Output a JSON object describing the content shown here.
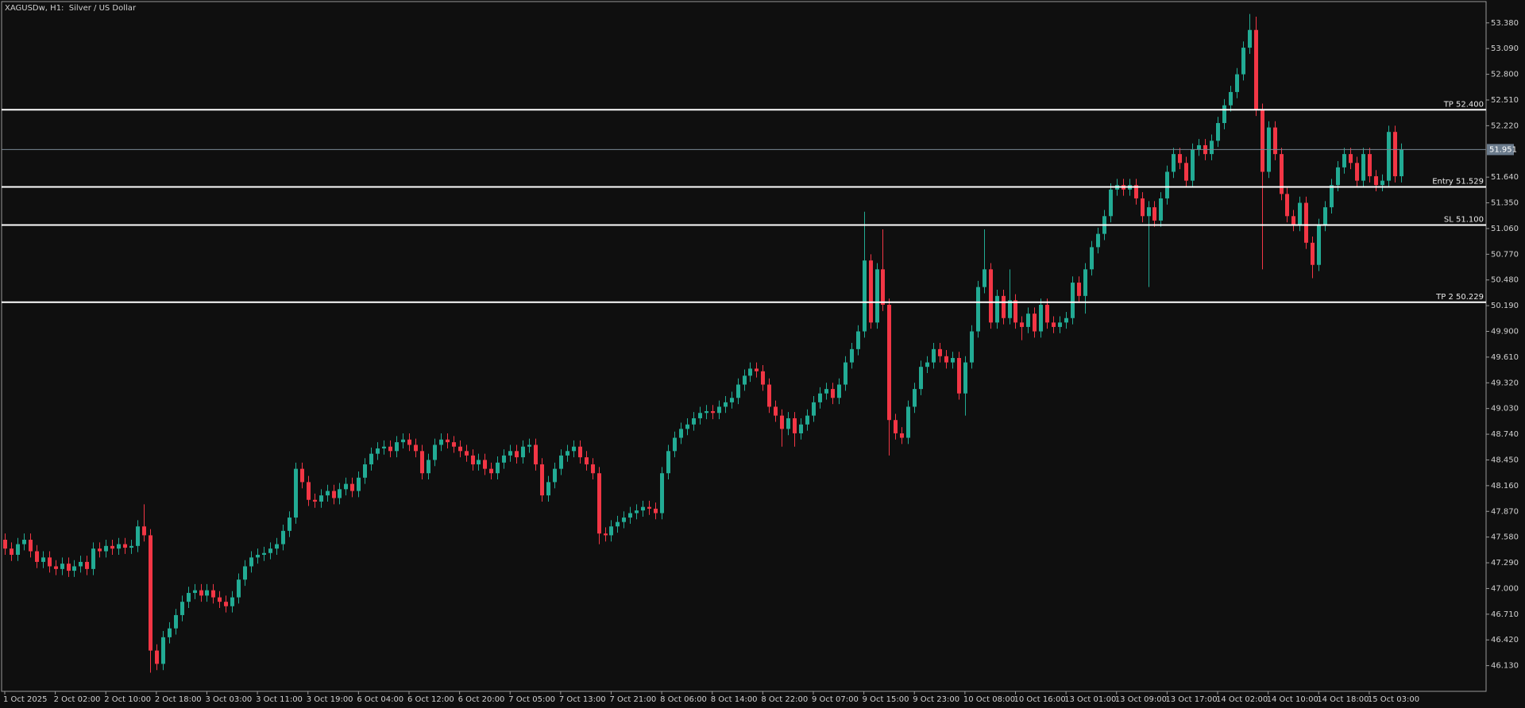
{
  "chart_data": {
    "type": "candlestick",
    "title": "XAGUSDw, H1:  Silver / US Dollar",
    "up_color": "#22ab94",
    "down_color": "#f23645",
    "xlim": [
      -0.5,
      234.5
    ],
    "ylim": [
      45.84,
      53.62
    ],
    "xticks": [
      {
        "value": 0,
        "label": "1 Oct 2025"
      },
      {
        "value": 8,
        "label": "2 Oct 02:00"
      },
      {
        "value": 16,
        "label": "2 Oct 10:00"
      },
      {
        "value": 24,
        "label": "2 Oct 18:00"
      },
      {
        "value": 32,
        "label": "3 Oct 03:00"
      },
      {
        "value": 40,
        "label": "3 Oct 11:00"
      },
      {
        "value": 48,
        "label": "3 Oct 19:00"
      },
      {
        "value": 56,
        "label": "6 Oct 04:00"
      },
      {
        "value": 64,
        "label": "6 Oct 12:00"
      },
      {
        "value": 72,
        "label": "6 Oct 20:00"
      },
      {
        "value": 80,
        "label": "7 Oct 05:00"
      },
      {
        "value": 88,
        "label": "7 Oct 13:00"
      },
      {
        "value": 96,
        "label": "7 Oct 21:00"
      },
      {
        "value": 104,
        "label": "8 Oct 06:00"
      },
      {
        "value": 112,
        "label": "8 Oct 14:00"
      },
      {
        "value": 120,
        "label": "8 Oct 22:00"
      },
      {
        "value": 128,
        "label": "9 Oct 07:00"
      },
      {
        "value": 136,
        "label": "9 Oct 15:00"
      },
      {
        "value": 144,
        "label": "9 Oct 23:00"
      },
      {
        "value": 152,
        "label": "10 Oct 08:00"
      },
      {
        "value": 160,
        "label": "10 Oct 16:00"
      },
      {
        "value": 168,
        "label": "13 Oct 01:00"
      },
      {
        "value": 176,
        "label": "13 Oct 09:00"
      },
      {
        "value": 184,
        "label": "13 Oct 17:00"
      },
      {
        "value": 192,
        "label": "14 Oct 02:00"
      },
      {
        "value": 200,
        "label": "14 Oct 10:00"
      },
      {
        "value": 208,
        "label": "14 Oct 18:00"
      },
      {
        "value": 216,
        "label": "15 Oct 03:00"
      }
    ],
    "yticks": [
      {
        "value": 53.38,
        "label": "53.380"
      },
      {
        "value": 53.09,
        "label": "53.090"
      },
      {
        "value": 52.8,
        "label": "52.800"
      },
      {
        "value": 52.51,
        "label": "52.510"
      },
      {
        "value": 52.22,
        "label": "52.220"
      },
      {
        "value": 51.64,
        "label": "51.640"
      },
      {
        "value": 51.35,
        "label": "51.350"
      },
      {
        "value": 51.06,
        "label": "51.060"
      },
      {
        "value": 50.77,
        "label": "50.770"
      },
      {
        "value": 50.48,
        "label": "50.480"
      },
      {
        "value": 50.19,
        "label": "50.190"
      },
      {
        "value": 49.9,
        "label": "49.900"
      },
      {
        "value": 49.61,
        "label": "49.610"
      },
      {
        "value": 49.32,
        "label": "49.320"
      },
      {
        "value": 49.03,
        "label": "49.030"
      },
      {
        "value": 48.74,
        "label": "48.740"
      },
      {
        "value": 48.45,
        "label": "48.450"
      },
      {
        "value": 48.16,
        "label": "48.160"
      },
      {
        "value": 47.87,
        "label": "47.870"
      },
      {
        "value": 47.58,
        "label": "47.580"
      },
      {
        "value": 47.29,
        "label": "47.290"
      },
      {
        "value": 47.0,
        "label": "47.000"
      },
      {
        "value": 46.71,
        "label": "46.710"
      },
      {
        "value": 46.42,
        "label": "46.420"
      },
      {
        "value": 46.13,
        "label": "46.130"
      }
    ],
    "levels": [
      {
        "value": 52.4,
        "label": "TP 52.400"
      },
      {
        "value": 51.529,
        "label": "Entry 51.529"
      },
      {
        "value": 51.1,
        "label": "SL 51.100"
      },
      {
        "value": 50.229,
        "label": "TP 2 50.229"
      }
    ],
    "current_price": 51.951,
    "open": [
      47.55,
      47.45,
      47.38,
      47.5,
      47.55,
      47.42,
      47.3,
      47.35,
      47.25,
      47.22,
      47.28,
      47.2,
      47.25,
      47.3,
      47.22,
      47.45,
      47.42,
      47.48,
      47.45,
      47.5,
      47.46,
      47.48,
      47.7,
      47.6,
      46.3,
      46.15,
      46.45,
      46.55,
      46.7,
      46.85,
      46.95,
      46.98,
      46.92,
      46.98,
      46.9,
      46.85,
      46.8,
      46.9,
      47.1,
      47.25,
      47.35,
      47.38,
      47.4,
      47.45,
      47.5,
      47.65,
      47.8,
      48.35,
      48.2,
      48.0,
      47.98,
      48.05,
      48.1,
      48.02,
      48.12,
      48.18,
      48.1,
      48.25,
      48.4,
      48.52,
      48.58,
      48.6,
      48.55,
      48.65,
      48.68,
      48.62,
      48.55,
      48.3,
      48.45,
      48.62,
      48.68,
      48.65,
      48.6,
      48.55,
      48.5,
      48.4,
      48.45,
      48.35,
      48.3,
      48.42,
      48.5,
      48.55,
      48.48,
      48.6,
      48.62,
      48.4,
      48.05,
      48.2,
      48.35,
      48.5,
      48.55,
      48.6,
      48.48,
      48.4,
      48.3,
      47.62,
      47.6,
      47.7,
      47.75,
      47.8,
      47.85,
      47.88,
      47.92,
      47.9,
      47.85,
      48.3,
      48.55,
      48.7,
      48.8,
      48.85,
      48.92,
      48.98,
      49.0,
      48.98,
      49.05,
      49.1,
      49.15,
      49.3,
      49.4,
      49.48,
      49.45,
      49.3,
      49.05,
      48.95,
      48.8,
      48.92,
      48.75,
      48.85,
      48.95,
      49.1,
      49.2,
      49.25,
      49.15,
      49.3,
      49.55,
      49.7,
      49.9,
      50.7,
      50.0,
      50.6,
      50.2,
      48.9,
      48.75,
      48.7,
      49.05,
      49.25,
      49.5,
      49.55,
      49.7,
      49.62,
      49.55,
      49.6,
      49.2,
      49.55,
      49.9,
      50.4,
      50.6,
      50.0,
      50.3,
      50.05,
      50.25,
      50.0,
      49.95,
      50.1,
      49.9,
      50.2,
      50.0,
      49.95,
      50.0,
      50.05,
      50.45,
      50.3,
      50.6,
      50.85,
      51.0,
      51.2,
      51.5,
      51.55,
      51.5,
      51.55,
      51.4,
      51.2,
      51.3,
      51.15,
      51.4,
      51.7,
      51.9,
      51.8,
      51.6,
      51.95,
      52.0,
      51.9,
      52.05,
      52.25,
      52.45,
      52.6,
      52.8,
      53.1,
      53.3,
      52.4,
      51.7,
      52.2,
      51.9,
      51.45,
      51.2,
      51.1,
      51.35,
      50.9,
      50.65,
      51.1,
      51.3,
      51.55,
      51.75,
      51.9,
      51.8,
      51.6,
      51.9,
      51.65,
      51.55,
      51.6,
      52.15,
      51.65
    ],
    "high": [
      47.62,
      47.52,
      47.57,
      47.62,
      47.62,
      47.49,
      47.42,
      47.42,
      47.32,
      47.35,
      47.35,
      47.32,
      47.37,
      47.37,
      47.52,
      47.52,
      47.55,
      47.55,
      47.57,
      47.57,
      47.55,
      47.77,
      47.95,
      47.67,
      46.37,
      46.52,
      46.62,
      46.77,
      46.92,
      47.02,
      47.05,
      47.05,
      47.05,
      47.05,
      46.97,
      46.92,
      46.97,
      47.17,
      47.32,
      47.42,
      47.45,
      47.47,
      47.52,
      47.57,
      47.72,
      47.87,
      48.42,
      48.42,
      48.27,
      48.07,
      48.12,
      48.17,
      48.17,
      48.19,
      48.25,
      48.25,
      48.32,
      48.47,
      48.59,
      48.65,
      48.67,
      48.67,
      48.72,
      48.75,
      48.75,
      48.69,
      48.62,
      48.52,
      48.69,
      48.75,
      48.75,
      48.72,
      48.67,
      48.62,
      48.57,
      48.52,
      48.52,
      48.42,
      48.49,
      48.57,
      48.62,
      48.62,
      48.67,
      48.69,
      48.69,
      48.47,
      48.27,
      48.42,
      48.57,
      48.62,
      48.67,
      48.67,
      48.55,
      48.47,
      48.37,
      47.69,
      47.77,
      47.82,
      47.87,
      47.92,
      47.95,
      47.99,
      47.99,
      47.97,
      48.37,
      48.62,
      48.77,
      48.87,
      48.92,
      48.99,
      49.05,
      49.07,
      49.07,
      49.12,
      49.17,
      49.22,
      49.37,
      49.47,
      49.55,
      49.55,
      49.52,
      49.37,
      49.12,
      49.02,
      48.99,
      48.99,
      48.92,
      49.02,
      49.17,
      49.27,
      49.32,
      49.32,
      49.37,
      49.62,
      49.77,
      49.97,
      51.25,
      50.77,
      50.67,
      51.05,
      50.27,
      48.97,
      48.82,
      49.12,
      49.32,
      49.57,
      49.62,
      49.77,
      49.77,
      49.69,
      49.67,
      49.67,
      49.62,
      49.97,
      50.47,
      51.05,
      50.67,
      50.37,
      50.37,
      50.6,
      50.32,
      50.07,
      50.17,
      50.17,
      50.27,
      50.27,
      50.07,
      50.07,
      50.12,
      50.52,
      50.52,
      50.67,
      50.92,
      51.07,
      51.27,
      51.57,
      51.62,
      51.62,
      51.62,
      51.62,
      51.47,
      51.37,
      51.37,
      51.47,
      51.77,
      51.97,
      51.97,
      51.87,
      52.02,
      52.07,
      52.07,
      52.12,
      52.32,
      52.52,
      52.67,
      52.87,
      53.17,
      53.48,
      53.45,
      52.47,
      52.27,
      52.27,
      51.97,
      51.52,
      51.27,
      51.42,
      51.42,
      50.97,
      51.17,
      51.37,
      51.62,
      51.82,
      51.97,
      51.97,
      51.87,
      51.97,
      51.97,
      51.72,
      51.67,
      52.22,
      52.22,
      52.02
    ],
    "low": [
      47.38,
      47.31,
      47.31,
      47.43,
      47.35,
      47.23,
      47.23,
      47.18,
      47.15,
      47.15,
      47.13,
      47.13,
      47.18,
      47.15,
      47.15,
      47.35,
      47.35,
      47.38,
      47.38,
      47.39,
      47.39,
      47.41,
      47.53,
      46.05,
      46.08,
      46.08,
      46.38,
      46.48,
      46.63,
      46.78,
      46.88,
      46.85,
      46.85,
      46.83,
      46.78,
      46.73,
      46.73,
      46.83,
      47.03,
      47.18,
      47.28,
      47.31,
      47.33,
      47.38,
      47.43,
      47.58,
      47.73,
      48.13,
      47.93,
      47.91,
      47.91,
      47.98,
      47.95,
      47.95,
      48.05,
      48.03,
      48.03,
      48.18,
      48.33,
      48.45,
      48.51,
      48.48,
      48.48,
      48.58,
      48.55,
      48.48,
      48.23,
      48.23,
      48.38,
      48.55,
      48.58,
      48.53,
      48.48,
      48.43,
      48.33,
      48.33,
      48.28,
      48.23,
      48.23,
      48.35,
      48.43,
      48.41,
      48.41,
      48.53,
      48.33,
      47.98,
      47.98,
      48.13,
      48.28,
      48.43,
      48.48,
      48.41,
      48.33,
      48.23,
      47.5,
      47.53,
      47.53,
      47.63,
      47.68,
      47.73,
      47.78,
      47.81,
      47.83,
      47.78,
      47.78,
      48.23,
      48.48,
      48.63,
      48.73,
      48.78,
      48.85,
      48.91,
      48.91,
      48.91,
      48.98,
      49.03,
      49.08,
      49.23,
      49.33,
      49.38,
      49.23,
      48.98,
      48.88,
      48.6,
      48.73,
      48.6,
      48.68,
      48.78,
      48.88,
      49.03,
      49.13,
      49.08,
      49.08,
      49.23,
      49.48,
      49.63,
      49.83,
      49.93,
      49.93,
      50.13,
      48.5,
      48.68,
      48.63,
      48.63,
      48.98,
      49.18,
      49.43,
      49.48,
      49.55,
      49.48,
      49.48,
      49.13,
      48.95,
      49.48,
      49.83,
      50.33,
      49.93,
      49.93,
      49.98,
      49.98,
      49.93,
      49.8,
      49.88,
      49.83,
      49.83,
      49.93,
      49.88,
      49.88,
      49.93,
      49.98,
      50.23,
      50.1,
      50.53,
      50.78,
      50.93,
      51.13,
      51.43,
      51.43,
      51.43,
      51.33,
      51.13,
      50.4,
      51.08,
      51.08,
      51.33,
      51.63,
      51.73,
      51.53,
      51.53,
      51.88,
      51.83,
      51.83,
      51.98,
      52.18,
      52.38,
      52.53,
      52.73,
      53.03,
      52.33,
      50.6,
      51.63,
      51.83,
      51.38,
      51.13,
      51.03,
      51.03,
      50.83,
      50.5,
      50.58,
      51.03,
      51.23,
      51.48,
      51.68,
      51.73,
      51.53,
      51.53,
      51.58,
      51.48,
      51.48,
      51.53,
      51.58,
      51.58
    ],
    "close": [
      47.45,
      47.38,
      47.5,
      47.55,
      47.42,
      47.3,
      47.35,
      47.25,
      47.22,
      47.28,
      47.2,
      47.25,
      47.3,
      47.22,
      47.45,
      47.42,
      47.48,
      47.45,
      47.5,
      47.46,
      47.48,
      47.7,
      47.6,
      46.3,
      46.15,
      46.45,
      46.55,
      46.7,
      46.85,
      46.95,
      46.98,
      46.92,
      46.98,
      46.9,
      46.85,
      46.8,
      46.9,
      47.1,
      47.25,
      47.35,
      47.38,
      47.4,
      47.45,
      47.5,
      47.65,
      47.8,
      48.35,
      48.2,
      48.0,
      47.98,
      48.05,
      48.1,
      48.02,
      48.12,
      48.18,
      48.1,
      48.25,
      48.4,
      48.52,
      48.58,
      48.6,
      48.55,
      48.65,
      48.68,
      48.62,
      48.55,
      48.3,
      48.45,
      48.62,
      48.68,
      48.65,
      48.6,
      48.55,
      48.5,
      48.4,
      48.45,
      48.35,
      48.3,
      48.42,
      48.5,
      48.55,
      48.48,
      48.6,
      48.62,
      48.4,
      48.05,
      48.2,
      48.35,
      48.5,
      48.55,
      48.6,
      48.48,
      48.4,
      48.3,
      47.62,
      47.6,
      47.7,
      47.75,
      47.8,
      47.85,
      47.88,
      47.92,
      47.9,
      47.85,
      48.3,
      48.55,
      48.7,
      48.8,
      48.85,
      48.92,
      48.98,
      49.0,
      48.98,
      49.05,
      49.1,
      49.15,
      49.3,
      49.4,
      49.48,
      49.45,
      49.3,
      49.05,
      48.95,
      48.8,
      48.92,
      48.75,
      48.85,
      48.95,
      49.1,
      49.2,
      49.25,
      49.15,
      49.3,
      49.55,
      49.7,
      49.9,
      50.7,
      50.0,
      50.6,
      50.2,
      48.9,
      48.75,
      48.7,
      49.05,
      49.25,
      49.5,
      49.55,
      49.7,
      49.62,
      49.55,
      49.6,
      49.2,
      49.55,
      49.9,
      50.4,
      50.6,
      50.0,
      50.3,
      50.05,
      50.25,
      50.0,
      49.95,
      50.1,
      49.9,
      50.2,
      50.0,
      49.95,
      50.0,
      50.05,
      50.45,
      50.3,
      50.6,
      50.85,
      51.0,
      51.2,
      51.5,
      51.55,
      51.5,
      51.55,
      51.4,
      51.2,
      51.3,
      51.15,
      51.4,
      51.7,
      51.9,
      51.8,
      51.6,
      51.95,
      52.0,
      51.9,
      52.05,
      52.25,
      52.45,
      52.6,
      52.8,
      53.1,
      53.3,
      52.4,
      51.7,
      52.2,
      51.9,
      51.45,
      51.2,
      51.1,
      51.35,
      50.9,
      50.65,
      51.1,
      51.3,
      51.55,
      51.75,
      51.9,
      51.8,
      51.6,
      51.9,
      51.65,
      51.55,
      51.6,
      52.15,
      51.65,
      51.95
    ]
  }
}
